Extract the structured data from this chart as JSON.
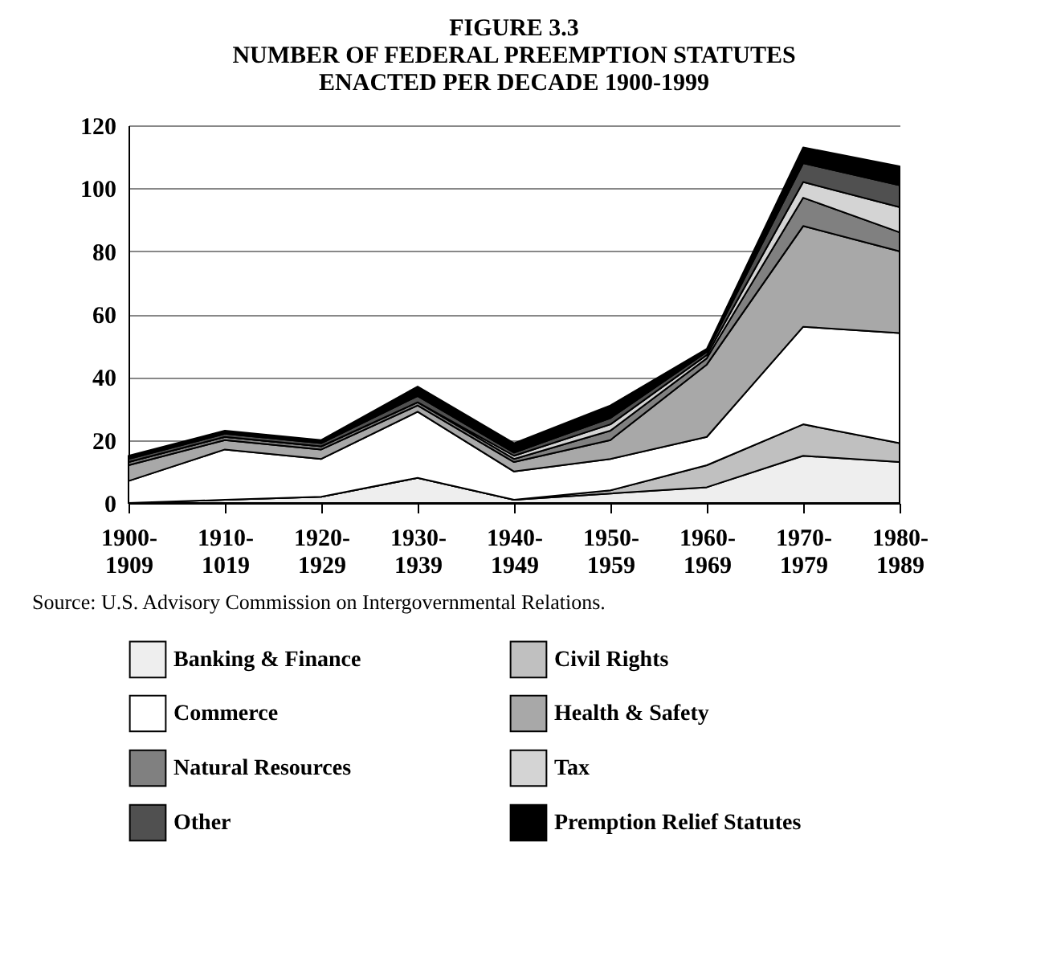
{
  "chart_data": {
    "type": "area",
    "stacked": true,
    "title": "FIGURE 3.3\nNUMBER OF FEDERAL PREEMPTION STATUTES\nENACTED PER DECADE 1900-1999",
    "categories": [
      "1900-1909",
      "1910-1019",
      "1920-1929",
      "1930-1939",
      "1940-1949",
      "1950-1959",
      "1960-1969",
      "1970-1979",
      "1980-1989"
    ],
    "series": [
      {
        "name": "Banking & Finance",
        "color": "#eeeeee",
        "values": [
          0,
          1,
          2,
          8,
          1,
          3,
          5,
          15,
          13
        ]
      },
      {
        "name": "Civil Rights",
        "color": "#c0c0c0",
        "values": [
          0,
          0,
          0,
          0,
          0,
          1,
          7,
          10,
          6
        ]
      },
      {
        "name": "Commerce",
        "color": "#ffffff",
        "values": [
          7,
          16,
          12,
          21,
          9,
          10,
          9,
          31,
          35
        ]
      },
      {
        "name": "Health & Safety",
        "color": "#a8a8a8",
        "values": [
          5,
          3,
          3,
          2,
          3,
          6,
          23,
          32,
          26
        ]
      },
      {
        "name": "Natural Resources",
        "color": "#808080",
        "values": [
          1,
          1,
          1,
          1,
          1,
          3,
          2,
          9,
          6
        ]
      },
      {
        "name": "Tax",
        "color": "#d4d4d4",
        "values": [
          0,
          0,
          0,
          0,
          1,
          2,
          1,
          5,
          8
        ]
      },
      {
        "name": "Other",
        "color": "#505050",
        "values": [
          1,
          1,
          1,
          2,
          1,
          2,
          1,
          6,
          7
        ]
      },
      {
        "name": "Premption Relief Statutes",
        "color": "#000000",
        "values": [
          1,
          1,
          1,
          3,
          3,
          4,
          1,
          5,
          6
        ]
      }
    ],
    "ylim": [
      0,
      120
    ],
    "yticks": [
      0,
      20,
      40,
      60,
      80,
      100,
      120
    ],
    "grid": "y",
    "legend": "bottom",
    "annotations": [
      "Source:  U.S. Advisory Commission on Intergovernmental Relations."
    ]
  }
}
